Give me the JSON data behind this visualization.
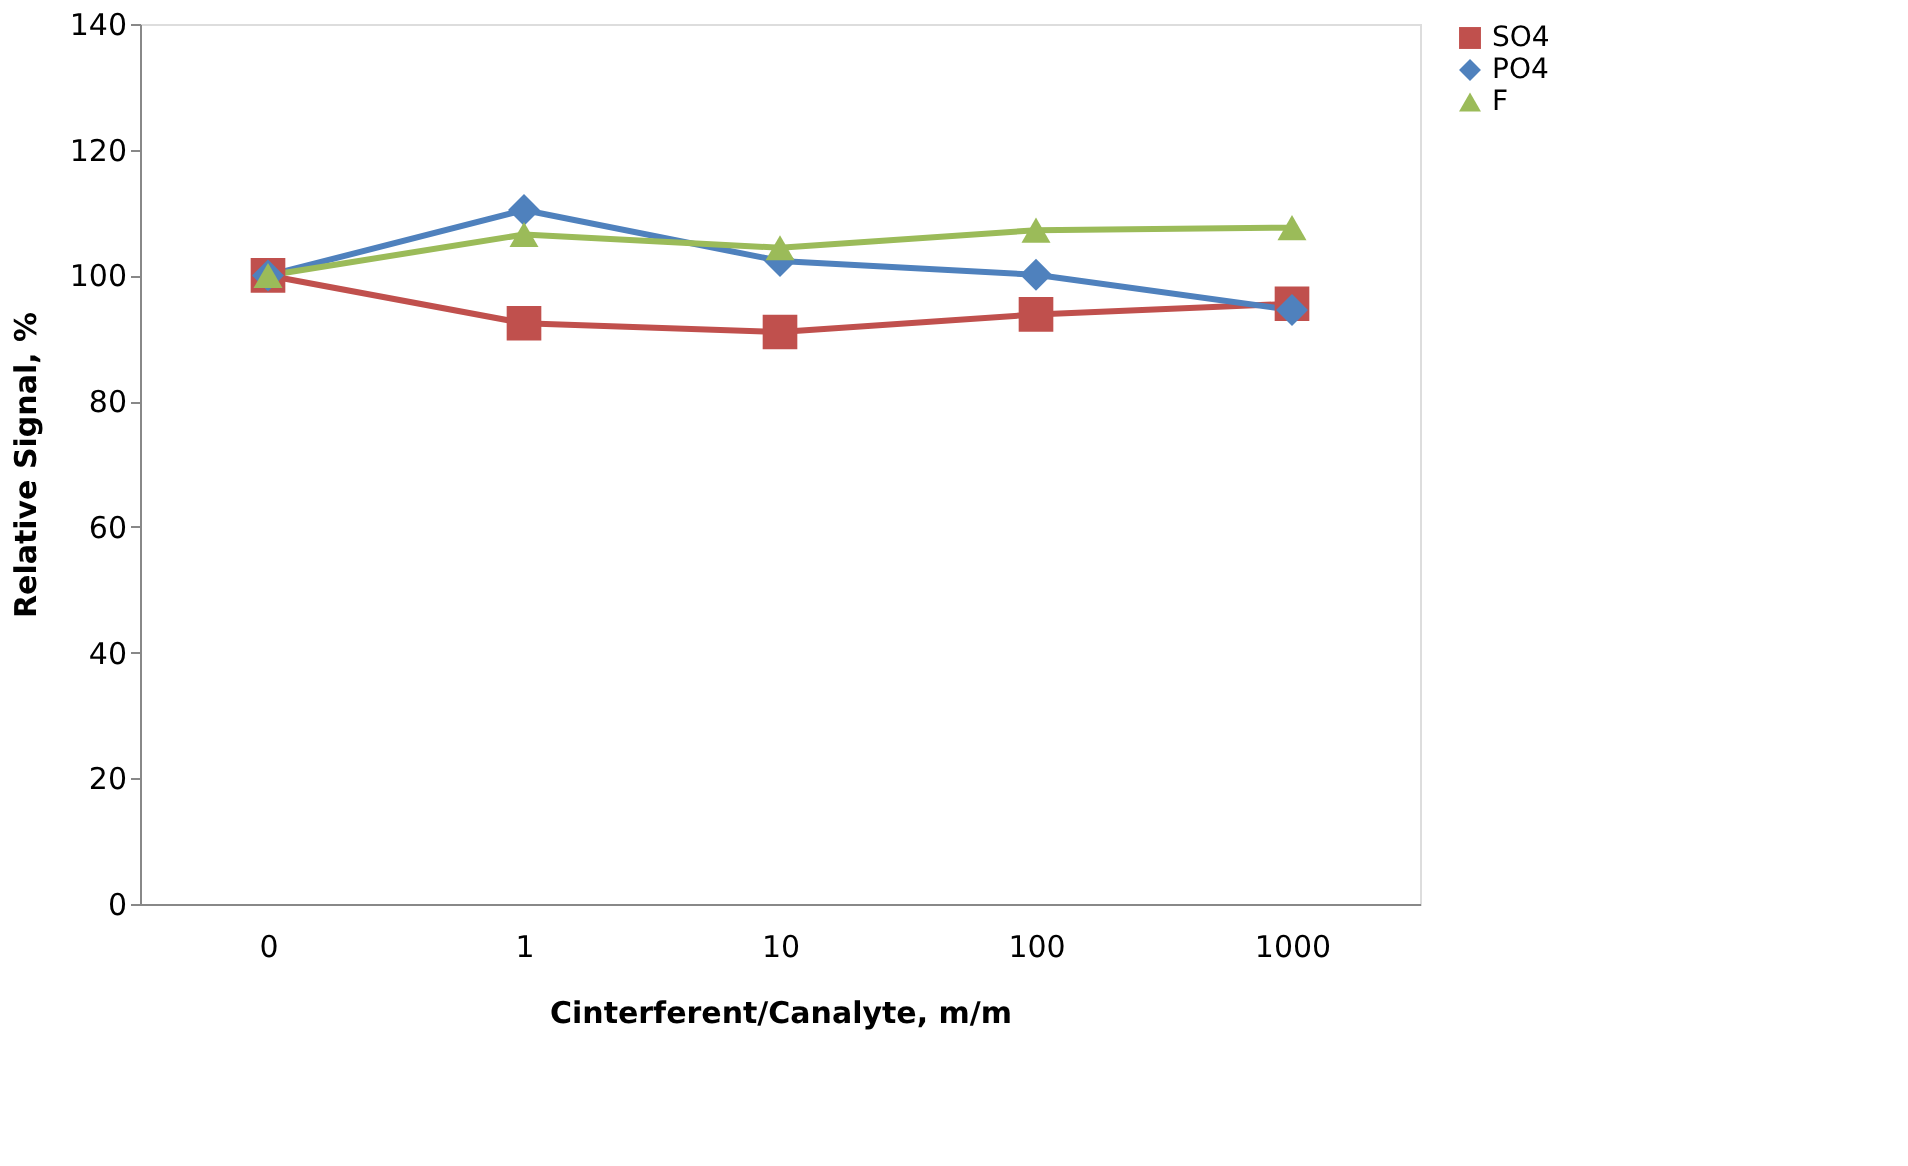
{
  "chart_data": {
    "type": "line",
    "xlabel": "Cinterferent/Canalyte, m/m",
    "ylabel": "Relative Signal, %",
    "categories": [
      "0",
      "1",
      "10",
      "100",
      "1000"
    ],
    "series": [
      {
        "name": "SO4",
        "color": "#c0504d",
        "marker": "square",
        "values": [
          100,
          92.4,
          91,
          93.8,
          95.5
        ]
      },
      {
        "name": "PO4",
        "color": "#4f81bd",
        "marker": "diamond",
        "values": [
          100,
          110.4,
          102.3,
          100.1,
          94.5
        ]
      },
      {
        "name": "F",
        "color": "#9bbb59",
        "marker": "triangle",
        "values": [
          100,
          106.5,
          104.4,
          107.2,
          107.6
        ]
      }
    ],
    "ylim": [
      0,
      140
    ],
    "yticks": [
      0,
      20,
      40,
      60,
      80,
      100,
      120,
      140
    ],
    "grid": false,
    "legend": "right",
    "line_style": "solid"
  }
}
